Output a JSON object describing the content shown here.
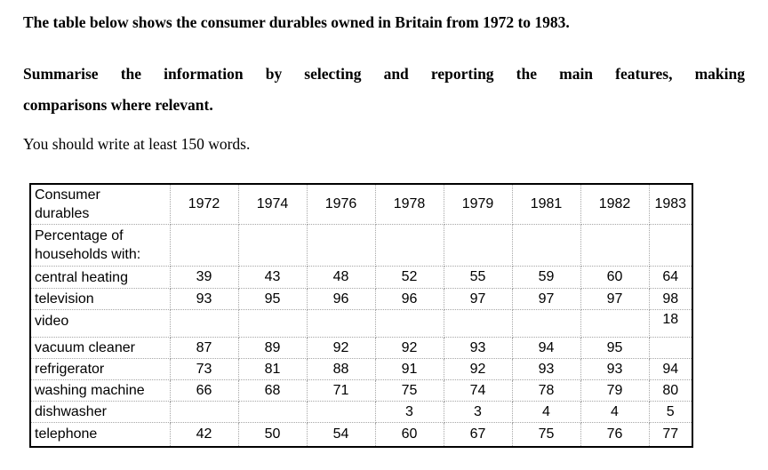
{
  "task": {
    "statement": "The table below shows the consumer durables owned in Britain from 1972 to 1983.",
    "instruction_line1": "Summarise the information by selecting and reporting the main features, making",
    "instruction_line2": "comparisons where relevant.",
    "word_note": "You should write at least 150 words."
  },
  "table": {
    "header_label": "Consumer\ndurables",
    "years": [
      "1972",
      "1974",
      "1976",
      "1978",
      "1979",
      "1981",
      "1982",
      "1983"
    ],
    "section_label": "Percentage of\nhouseholds with:",
    "rows": [
      {
        "label": "central heating",
        "tall": false,
        "values": [
          "39",
          "43",
          "48",
          "52",
          "55",
          "59",
          "60",
          "64"
        ]
      },
      {
        "label": "television",
        "tall": false,
        "values": [
          "93",
          "95",
          "96",
          "96",
          "97",
          "97",
          "97",
          "98"
        ]
      },
      {
        "label": "video",
        "tall": true,
        "values": [
          "",
          "",
          "",
          "",
          "",
          "",
          "",
          "18"
        ]
      },
      {
        "label": "vacuum cleaner",
        "tall": false,
        "values": [
          "87",
          "89",
          "92",
          "92",
          "93",
          "94",
          "95",
          ""
        ]
      },
      {
        "label": "refrigerator",
        "tall": false,
        "values": [
          "73",
          "81",
          "88",
          "91",
          "92",
          "93",
          "93",
          "94"
        ]
      },
      {
        "label": "washing machine",
        "tall": false,
        "values": [
          "66",
          "68",
          "71",
          "75",
          "74",
          "78",
          "79",
          "80"
        ]
      },
      {
        "label": "dishwasher",
        "tall": false,
        "values": [
          "",
          "",
          "",
          "3",
          "3",
          "4",
          "4",
          "5"
        ]
      },
      {
        "label": "telephone",
        "tall": false,
        "values": [
          "42",
          "50",
          "54",
          "60",
          "67",
          "75",
          "76",
          "77"
        ]
      }
    ]
  },
  "colors": {
    "page_background": "#ffffff",
    "text": "#000000",
    "table_outer_border": "#000000",
    "table_grid_dotted": "#a6a6a6"
  }
}
